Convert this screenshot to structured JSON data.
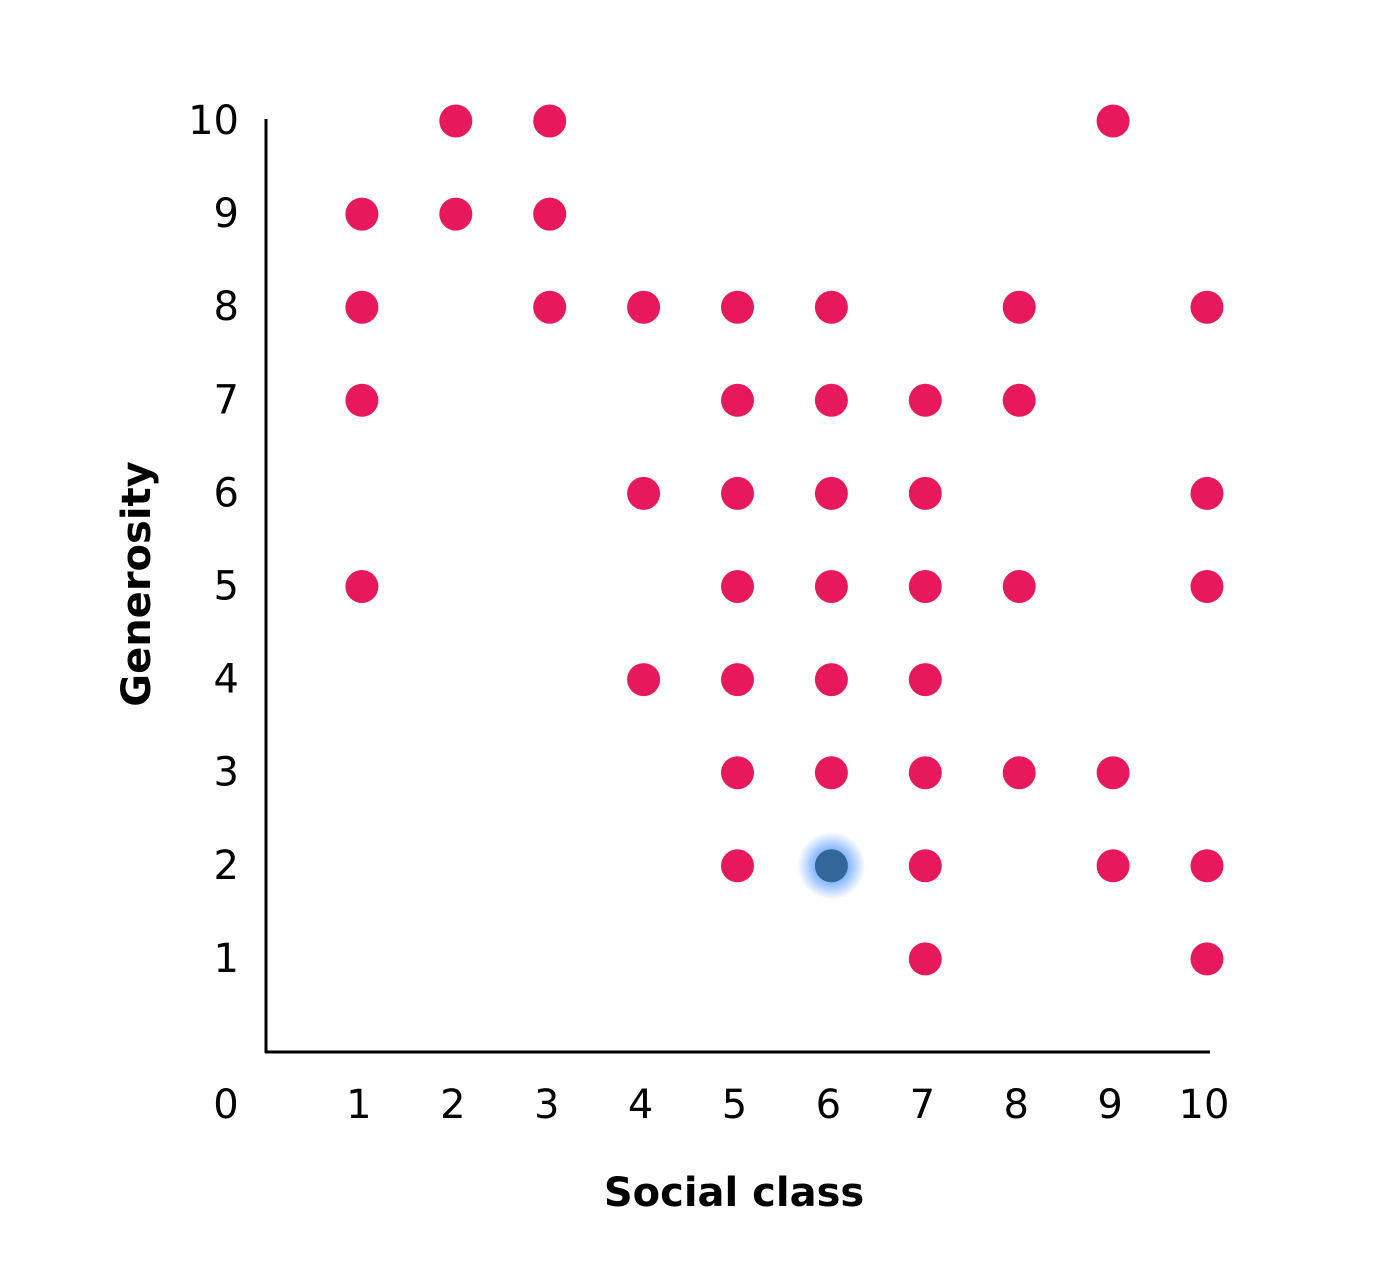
{
  "chart_data": {
    "type": "scatter",
    "title": "",
    "xlabel": "Social class",
    "ylabel": "Generosity",
    "xlim": [
      0,
      10
    ],
    "ylim": [
      0,
      10
    ],
    "origin_label": "0",
    "xticks": [
      "1",
      "2",
      "3",
      "4",
      "5",
      "6",
      "7",
      "8",
      "9",
      "10"
    ],
    "yticks": [
      "1",
      "2",
      "3",
      "4",
      "5",
      "6",
      "7",
      "8",
      "9",
      "10"
    ],
    "grid": false,
    "colors": {
      "default": "#E8185C",
      "highlight": "#336699"
    },
    "points": [
      {
        "x": 2,
        "y": 10
      },
      {
        "x": 3,
        "y": 10
      },
      {
        "x": 9,
        "y": 10
      },
      {
        "x": 1,
        "y": 9
      },
      {
        "x": 2,
        "y": 9
      },
      {
        "x": 3,
        "y": 9
      },
      {
        "x": 1,
        "y": 8
      },
      {
        "x": 3,
        "y": 8
      },
      {
        "x": 4,
        "y": 8
      },
      {
        "x": 5,
        "y": 8
      },
      {
        "x": 6,
        "y": 8
      },
      {
        "x": 8,
        "y": 8
      },
      {
        "x": 10,
        "y": 8
      },
      {
        "x": 1,
        "y": 7
      },
      {
        "x": 5,
        "y": 7
      },
      {
        "x": 6,
        "y": 7
      },
      {
        "x": 7,
        "y": 7
      },
      {
        "x": 8,
        "y": 7
      },
      {
        "x": 4,
        "y": 6
      },
      {
        "x": 5,
        "y": 6
      },
      {
        "x": 6,
        "y": 6
      },
      {
        "x": 7,
        "y": 6
      },
      {
        "x": 10,
        "y": 6
      },
      {
        "x": 1,
        "y": 5
      },
      {
        "x": 5,
        "y": 5
      },
      {
        "x": 6,
        "y": 5
      },
      {
        "x": 7,
        "y": 5
      },
      {
        "x": 8,
        "y": 5
      },
      {
        "x": 10,
        "y": 5
      },
      {
        "x": 4,
        "y": 4
      },
      {
        "x": 5,
        "y": 4
      },
      {
        "x": 6,
        "y": 4
      },
      {
        "x": 7,
        "y": 4
      },
      {
        "x": 5,
        "y": 3
      },
      {
        "x": 6,
        "y": 3
      },
      {
        "x": 7,
        "y": 3
      },
      {
        "x": 8,
        "y": 3
      },
      {
        "x": 9,
        "y": 3
      },
      {
        "x": 5,
        "y": 2
      },
      {
        "x": 6,
        "y": 2,
        "highlight": true
      },
      {
        "x": 7,
        "y": 2
      },
      {
        "x": 9,
        "y": 2
      },
      {
        "x": 10,
        "y": 2
      },
      {
        "x": 7,
        "y": 1
      },
      {
        "x": 10,
        "y": 1
      }
    ]
  }
}
